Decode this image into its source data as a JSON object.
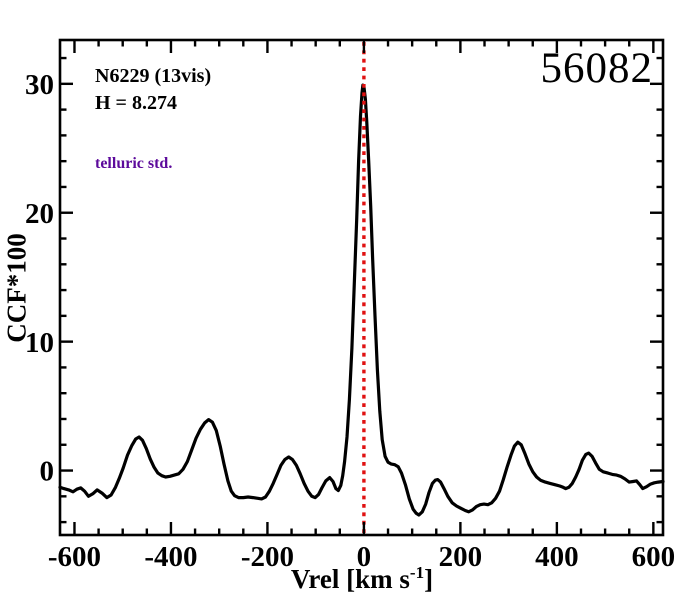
{
  "figure": {
    "background": "#ffffff",
    "text_color": "#000000"
  },
  "annotations": {
    "target": "N6229 (13vis)",
    "h_magnitude": "H = 8.274",
    "telluric_note": "telluric std.",
    "telluric_color": "#5c0a9b",
    "mjd": "56082"
  },
  "chart_data": {
    "type": "line",
    "title": "",
    "xlabel": "Vrel [km s^-1]",
    "xlabel_parts": {
      "main": "Vrel [km s",
      "sup": "-1",
      "end": "]"
    },
    "ylabel": "CCF*100",
    "xlim": [
      -630,
      620
    ],
    "ylim": [
      -5,
      33.4
    ],
    "xticks_major": [
      -600,
      -400,
      -200,
      0,
      200,
      400,
      600
    ],
    "xtick_labels": [
      "-600",
      "-400",
      "-200",
      "0",
      "200",
      "400",
      "600"
    ],
    "xticks_minor_step": 50,
    "yticks_major": [
      0,
      10,
      20,
      30
    ],
    "ytick_labels": [
      "0",
      "10",
      "20",
      "30"
    ],
    "yticks_minor_step": 2,
    "grid": false,
    "legend": false,
    "frame_color": "#000000",
    "line_color": "#000000",
    "marker_line": {
      "x": 0,
      "color": "#e01111",
      "style": "dotted"
    },
    "series": [
      {
        "name": "CCF",
        "x": [
          -630,
          -622,
          -612,
          -603,
          -595,
          -587,
          -579,
          -571,
          -562,
          -553,
          -543,
          -533,
          -524,
          -515,
          -507,
          -499,
          -490,
          -481,
          -473,
          -466,
          -459,
          -451,
          -443,
          -435,
          -427,
          -419,
          -411,
          -402,
          -393,
          -384,
          -375,
          -366,
          -357,
          -348,
          -339,
          -330,
          -322,
          -314,
          -306,
          -298,
          -290,
          -282,
          -275,
          -268,
          -260,
          -250,
          -240,
          -230,
          -220,
          -212,
          -204,
          -196,
          -188,
          -180,
          -172,
          -164,
          -156,
          -148,
          -140,
          -132,
          -124,
          -116,
          -108,
          -101,
          -94,
          -87,
          -79,
          -71,
          -64,
          -58,
          -53,
          -48,
          -44,
          -40,
          -35,
          -30,
          -25,
          -20,
          -15,
          -11,
          -7,
          -4,
          -2,
          0,
          3,
          6,
          10,
          14,
          18,
          23,
          28,
          33,
          38,
          44,
          50,
          57,
          64,
          71,
          78,
          86,
          94,
          102,
          108,
          114,
          121,
          128,
          135,
          142,
          148,
          153,
          159,
          166,
          174,
          183,
          192,
          202,
          210,
          217,
          225,
          233,
          241,
          249,
          257,
          265,
          273,
          281,
          289,
          297,
          305,
          312,
          319,
          326,
          334,
          342,
          350,
          358,
          366,
          376,
          386,
          396,
          406,
          413,
          418,
          425,
          432,
          439,
          446,
          453,
          460,
          466,
          473,
          480,
          488,
          496,
          506,
          515,
          524,
          532,
          541,
          550,
          558,
          565,
          572,
          578,
          586,
          594,
          602,
          610,
          620
        ],
        "y": [
          -1.3,
          -1.4,
          -1.5,
          -1.65,
          -1.45,
          -1.35,
          -1.6,
          -2.0,
          -1.8,
          -1.5,
          -1.75,
          -2.1,
          -1.9,
          -1.3,
          -0.6,
          0.2,
          1.2,
          1.95,
          2.45,
          2.6,
          2.35,
          1.7,
          0.9,
          0.25,
          -0.2,
          -0.4,
          -0.5,
          -0.45,
          -0.35,
          -0.25,
          0.1,
          0.7,
          1.6,
          2.5,
          3.2,
          3.7,
          3.95,
          3.75,
          3.1,
          1.9,
          0.5,
          -0.8,
          -1.6,
          -1.95,
          -2.1,
          -2.1,
          -2.05,
          -2.1,
          -2.15,
          -2.2,
          -2.05,
          -1.6,
          -1.0,
          -0.3,
          0.4,
          0.85,
          1.05,
          0.85,
          0.4,
          -0.25,
          -1.0,
          -1.6,
          -2.0,
          -2.1,
          -1.85,
          -1.35,
          -0.8,
          -0.55,
          -0.85,
          -1.4,
          -1.55,
          -1.15,
          -0.4,
          0.7,
          2.6,
          5.5,
          9.5,
          14.5,
          19.5,
          24.0,
          27.5,
          29.3,
          29.9,
          29.8,
          28.8,
          27.0,
          24.0,
          20.5,
          16.5,
          12.0,
          7.8,
          4.6,
          2.4,
          1.1,
          0.65,
          0.5,
          0.45,
          0.3,
          -0.2,
          -1.1,
          -2.2,
          -3.0,
          -3.3,
          -3.45,
          -3.2,
          -2.6,
          -1.7,
          -1.0,
          -0.75,
          -0.7,
          -0.9,
          -1.4,
          -2.0,
          -2.5,
          -2.75,
          -2.95,
          -3.1,
          -3.2,
          -3.05,
          -2.8,
          -2.65,
          -2.6,
          -2.65,
          -2.5,
          -2.15,
          -1.6,
          -0.7,
          0.3,
          1.2,
          1.9,
          2.2,
          2.0,
          1.3,
          0.5,
          -0.1,
          -0.5,
          -0.75,
          -0.9,
          -1.0,
          -1.1,
          -1.2,
          -1.3,
          -1.4,
          -1.3,
          -1.0,
          -0.5,
          0.1,
          0.8,
          1.25,
          1.35,
          1.1,
          0.6,
          0.1,
          -0.1,
          -0.2,
          -0.3,
          -0.35,
          -0.45,
          -0.65,
          -0.9,
          -0.85,
          -0.8,
          -1.1,
          -1.4,
          -1.25,
          -1.05,
          -0.95,
          -0.9,
          -0.85
        ]
      }
    ]
  }
}
